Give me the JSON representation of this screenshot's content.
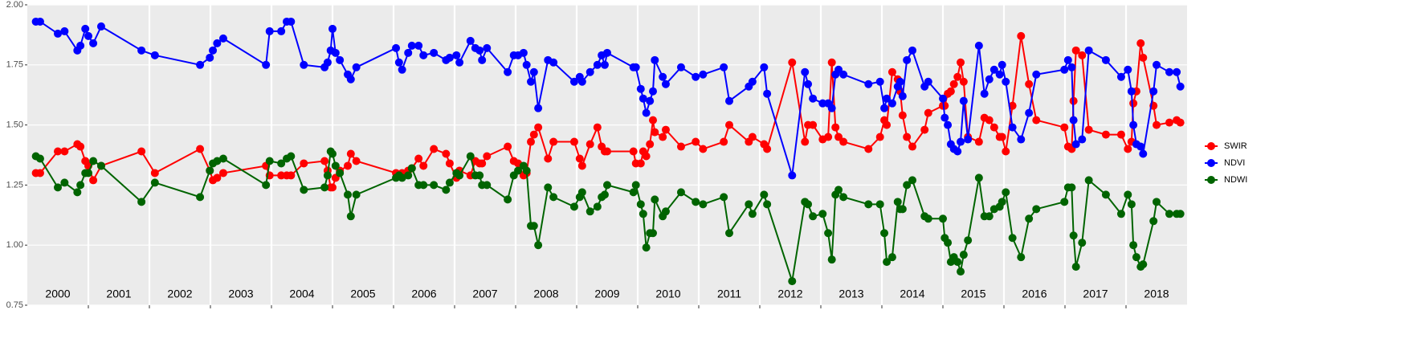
{
  "chart_data": {
    "type": "line",
    "legend": "right",
    "grid": true,
    "xlim": [
      2000,
      2019
    ],
    "ylim": [
      0.75,
      2.0
    ],
    "yticks": [
      {
        "value": 2.0,
        "label": "2.00"
      },
      1.75,
      {
        "value": 1.5,
        "label": "1.50"
      },
      1.25,
      {
        "value": 1.0,
        "label": "1.00"
      },
      0.75
    ],
    "xticks": [
      {
        "value": 2000.5,
        "label": "2000"
      },
      {
        "value": 2001.5,
        "label": "2001"
      },
      {
        "value": 2002.5,
        "label": "2002"
      },
      {
        "value": 2003.5,
        "label": "2003"
      },
      {
        "value": 2004.5,
        "label": "2004"
      },
      {
        "value": 2005.5,
        "label": "2005"
      },
      {
        "value": 2006.5,
        "label": "2006"
      },
      {
        "value": 2007.5,
        "label": "2007"
      },
      {
        "value": 2008.5,
        "label": "2008"
      },
      {
        "value": 2009.5,
        "label": "2009"
      },
      {
        "value": 2010.5,
        "label": "2010"
      },
      {
        "value": 2011.5,
        "label": "2011"
      },
      {
        "value": 2012.5,
        "label": "2012"
      },
      {
        "value": 2013.5,
        "label": "2013"
      },
      {
        "value": 2014.5,
        "label": "2014"
      },
      {
        "value": 2015.5,
        "label": "2015"
      },
      {
        "value": 2016.5,
        "label": "2016"
      },
      {
        "value": 2017.5,
        "label": "2017"
      },
      {
        "value": 2018.5,
        "label": "2018"
      }
    ],
    "xgrid": [
      2001,
      2002,
      2003,
      2004,
      2005,
      2006,
      2007,
      2008,
      2009,
      2010,
      2011,
      2012,
      2013,
      2014,
      2015,
      2016,
      2017,
      2018
    ],
    "x": [
      2000.14,
      2000.21,
      2000.5,
      2000.61,
      2000.82,
      2000.87,
      2000.95,
      2001.0,
      2001.08,
      2001.21,
      2001.87,
      2002.09,
      2002.83,
      2002.99,
      2003.04,
      2003.11,
      2003.21,
      2003.91,
      2003.97,
      2004.16,
      2004.25,
      2004.32,
      2004.53,
      2004.87,
      2004.92,
      2004.97,
      2005.0,
      2005.05,
      2005.12,
      2005.25,
      2005.3,
      2005.39,
      2006.04,
      2006.09,
      2006.14,
      2006.24,
      2006.3,
      2006.41,
      2006.49,
      2006.66,
      2006.86,
      2006.92,
      2007.03,
      2007.08,
      2007.26,
      2007.34,
      2007.41,
      2007.45,
      2007.53,
      2007.87,
      2007.97,
      2008.04,
      2008.13,
      2008.18,
      2008.25,
      2008.3,
      2008.37,
      2008.53,
      2008.62,
      2008.96,
      2009.05,
      2009.09,
      2009.22,
      2009.34,
      2009.41,
      2009.46,
      2009.5,
      2009.93,
      2009.97,
      2010.05,
      2010.09,
      2010.14,
      2010.2,
      2010.25,
      2010.28,
      2010.41,
      2010.46,
      2010.71,
      2010.95,
      2011.07,
      2011.41,
      2011.5,
      2011.82,
      2011.88,
      2012.07,
      2012.12,
      2012.53,
      2012.74,
      2012.79,
      2012.87,
      2013.03,
      2013.12,
      2013.18,
      2013.24,
      2013.29,
      2013.37,
      2013.78,
      2013.97,
      2014.04,
      2014.08,
      2014.17,
      2014.26,
      2014.3,
      2014.34,
      2014.41,
      2014.5,
      2014.7,
      2014.76,
      2015.0,
      2015.03,
      2015.08,
      2015.13,
      2015.18,
      2015.24,
      2015.29,
      2015.34,
      2015.41,
      2015.59,
      2015.68,
      2015.76,
      2015.84,
      2015.93,
      2015.97,
      2016.03,
      2016.14,
      2016.28,
      2016.41,
      2016.53,
      2016.99,
      2017.05,
      2017.11,
      2017.14,
      2017.18,
      2017.28,
      2017.39,
      2017.67,
      2017.92,
      2018.03,
      2018.09,
      2018.12,
      2018.17,
      2018.24,
      2018.28,
      2018.45,
      2018.5,
      2018.71,
      2018.83,
      2018.89
    ],
    "series": [
      {
        "name": "SWIR",
        "color": "#ff0000",
        "values": [
          1.3,
          1.3,
          1.39,
          1.39,
          1.42,
          1.41,
          1.35,
          1.33,
          1.27,
          1.33,
          1.39,
          1.3,
          1.4,
          1.31,
          1.27,
          1.28,
          1.3,
          1.33,
          1.29,
          1.29,
          1.29,
          1.29,
          1.34,
          1.35,
          1.31,
          1.24,
          1.24,
          1.28,
          1.31,
          1.33,
          1.38,
          1.35,
          1.3,
          1.29,
          1.3,
          1.31,
          1.32,
          1.36,
          1.33,
          1.4,
          1.38,
          1.34,
          1.28,
          1.31,
          1.29,
          1.35,
          1.34,
          1.34,
          1.37,
          1.41,
          1.35,
          1.34,
          1.29,
          1.3,
          1.43,
          1.46,
          1.49,
          1.36,
          1.43,
          1.43,
          1.36,
          1.33,
          1.42,
          1.49,
          1.41,
          1.39,
          1.39,
          1.39,
          1.34,
          1.34,
          1.39,
          1.37,
          1.42,
          1.52,
          1.47,
          1.45,
          1.48,
          1.41,
          1.43,
          1.4,
          1.43,
          1.5,
          1.43,
          1.45,
          1.42,
          1.4,
          1.76,
          1.43,
          1.5,
          1.5,
          1.44,
          1.45,
          1.76,
          1.49,
          1.45,
          1.43,
          1.4,
          1.45,
          1.52,
          1.5,
          1.72,
          1.69,
          1.64,
          1.54,
          1.45,
          1.41,
          1.48,
          1.55,
          1.58,
          1.58,
          1.63,
          1.64,
          1.67,
          1.7,
          1.76,
          1.68,
          1.45,
          1.43,
          1.53,
          1.52,
          1.49,
          1.45,
          1.45,
          1.39,
          1.58,
          1.87,
          1.67,
          1.52,
          1.49,
          1.41,
          1.4,
          1.6,
          1.81,
          1.79,
          1.48,
          1.46,
          1.46,
          1.4,
          1.43,
          1.59,
          1.64,
          1.84,
          1.78,
          1.58,
          1.5,
          1.51,
          1.52,
          1.51
        ]
      },
      {
        "name": "NDVI",
        "color": "#0000ff",
        "values": [
          1.93,
          1.93,
          1.88,
          1.89,
          1.81,
          1.83,
          1.9,
          1.87,
          1.84,
          1.91,
          1.81,
          1.79,
          1.75,
          1.78,
          1.81,
          1.84,
          1.86,
          1.75,
          1.89,
          1.89,
          1.93,
          1.93,
          1.75,
          1.74,
          1.76,
          1.81,
          1.9,
          1.8,
          1.77,
          1.71,
          1.69,
          1.74,
          1.82,
          1.76,
          1.73,
          1.8,
          1.83,
          1.83,
          1.79,
          1.8,
          1.77,
          1.78,
          1.79,
          1.76,
          1.85,
          1.82,
          1.81,
          1.77,
          1.82,
          1.72,
          1.79,
          1.79,
          1.8,
          1.75,
          1.68,
          1.72,
          1.57,
          1.77,
          1.76,
          1.68,
          1.7,
          1.68,
          1.72,
          1.75,
          1.79,
          1.75,
          1.8,
          1.74,
          1.74,
          1.65,
          1.61,
          1.55,
          1.6,
          1.64,
          1.77,
          1.7,
          1.67,
          1.74,
          1.7,
          1.71,
          1.74,
          1.6,
          1.66,
          1.68,
          1.74,
          1.63,
          1.29,
          1.72,
          1.67,
          1.61,
          1.59,
          1.59,
          1.57,
          1.71,
          1.73,
          1.71,
          1.67,
          1.68,
          1.57,
          1.61,
          1.59,
          1.66,
          1.68,
          1.62,
          1.77,
          1.81,
          1.66,
          1.68,
          1.61,
          1.53,
          1.5,
          1.42,
          1.4,
          1.39,
          1.43,
          1.6,
          1.44,
          1.83,
          1.63,
          1.69,
          1.73,
          1.71,
          1.75,
          1.68,
          1.49,
          1.44,
          1.55,
          1.71,
          1.73,
          1.77,
          1.74,
          1.52,
          1.42,
          1.44,
          1.81,
          1.77,
          1.7,
          1.73,
          1.64,
          1.5,
          1.42,
          1.41,
          1.38,
          1.64,
          1.75,
          1.72,
          1.72,
          1.66
        ]
      },
      {
        "name": "NDWI",
        "color": "#006400",
        "values": [
          1.37,
          1.36,
          1.24,
          1.26,
          1.22,
          1.25,
          1.3,
          1.3,
          1.35,
          1.33,
          1.18,
          1.26,
          1.2,
          1.31,
          1.34,
          1.35,
          1.36,
          1.25,
          1.35,
          1.34,
          1.36,
          1.37,
          1.23,
          1.24,
          1.29,
          1.39,
          1.38,
          1.33,
          1.3,
          1.21,
          1.12,
          1.21,
          1.28,
          1.29,
          1.28,
          1.29,
          1.32,
          1.25,
          1.25,
          1.25,
          1.23,
          1.26,
          1.3,
          1.29,
          1.37,
          1.29,
          1.29,
          1.25,
          1.25,
          1.19,
          1.29,
          1.31,
          1.33,
          1.31,
          1.08,
          1.08,
          1.0,
          1.24,
          1.2,
          1.16,
          1.2,
          1.22,
          1.14,
          1.16,
          1.2,
          1.21,
          1.25,
          1.22,
          1.25,
          1.17,
          1.13,
          0.99,
          1.05,
          1.05,
          1.19,
          1.12,
          1.14,
          1.22,
          1.18,
          1.17,
          1.2,
          1.05,
          1.17,
          1.13,
          1.21,
          1.17,
          0.85,
          1.18,
          1.17,
          1.12,
          1.13,
          1.05,
          0.94,
          1.21,
          1.23,
          1.2,
          1.17,
          1.17,
          1.05,
          0.93,
          0.95,
          1.18,
          1.15,
          1.15,
          1.25,
          1.27,
          1.12,
          1.11,
          1.11,
          1.03,
          1.01,
          0.93,
          0.95,
          0.93,
          0.89,
          0.96,
          1.02,
          1.28,
          1.12,
          1.12,
          1.15,
          1.16,
          1.18,
          1.22,
          1.03,
          0.95,
          1.11,
          1.15,
          1.18,
          1.24,
          1.24,
          1.04,
          0.91,
          1.01,
          1.27,
          1.21,
          1.13,
          1.21,
          1.17,
          1.0,
          0.95,
          0.91,
          0.92,
          1.1,
          1.18,
          1.13,
          1.13,
          1.13
        ]
      }
    ]
  }
}
